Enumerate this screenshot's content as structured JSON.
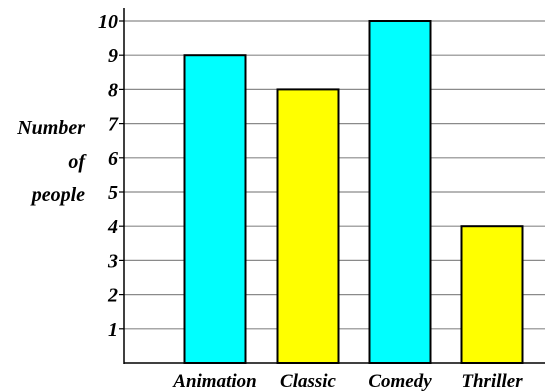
{
  "chart_data": {
    "type": "bar",
    "title": "",
    "xlabel": "",
    "ylabel": [
      "Number",
      "of",
      "people"
    ],
    "categories": [
      "Animation",
      "Classic",
      "Comedy",
      "Thriller"
    ],
    "values": [
      9,
      8,
      10,
      4
    ],
    "bar_colors": [
      "#00ffff",
      "#ffff00",
      "#00ffff",
      "#ffff00"
    ],
    "ylim": [
      0,
      10
    ],
    "yticks": [
      1,
      2,
      3,
      4,
      5,
      6,
      7,
      8,
      9,
      10
    ],
    "grid": true,
    "legend": "none"
  }
}
